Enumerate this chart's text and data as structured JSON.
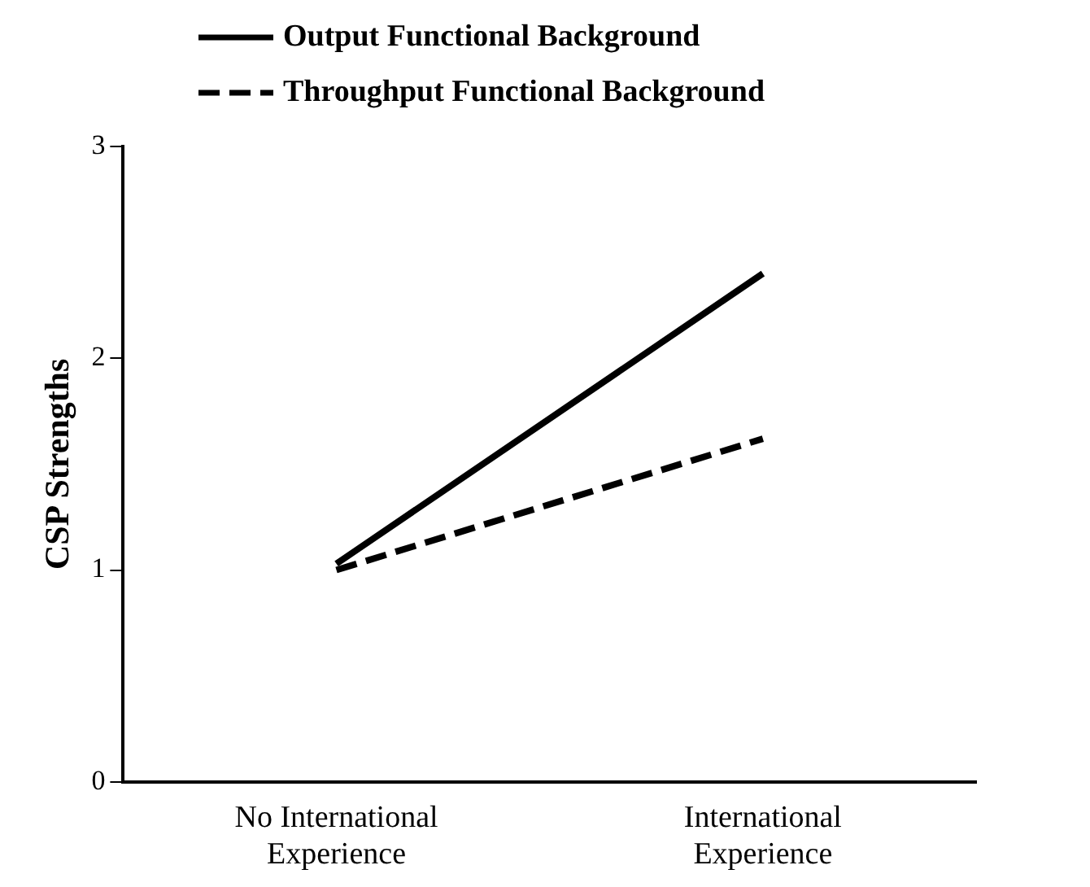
{
  "chart_data": {
    "type": "line",
    "ylabel": "CSP Strengths",
    "categories": [
      "No International Experience",
      "International Experience"
    ],
    "series": [
      {
        "name": "Output Functional Background",
        "color": "#000000",
        "values": [
          1.03,
          2.4
        ],
        "line_style": "solid"
      },
      {
        "name": "Throughput Functional Background",
        "color": "#000000",
        "values": [
          1.0,
          1.62
        ],
        "line_style": "dashed"
      }
    ],
    "ylim": [
      0,
      3
    ],
    "yticks": [
      0,
      1,
      2,
      3
    ],
    "grid": false,
    "legend": "top left",
    "marker": "none"
  }
}
